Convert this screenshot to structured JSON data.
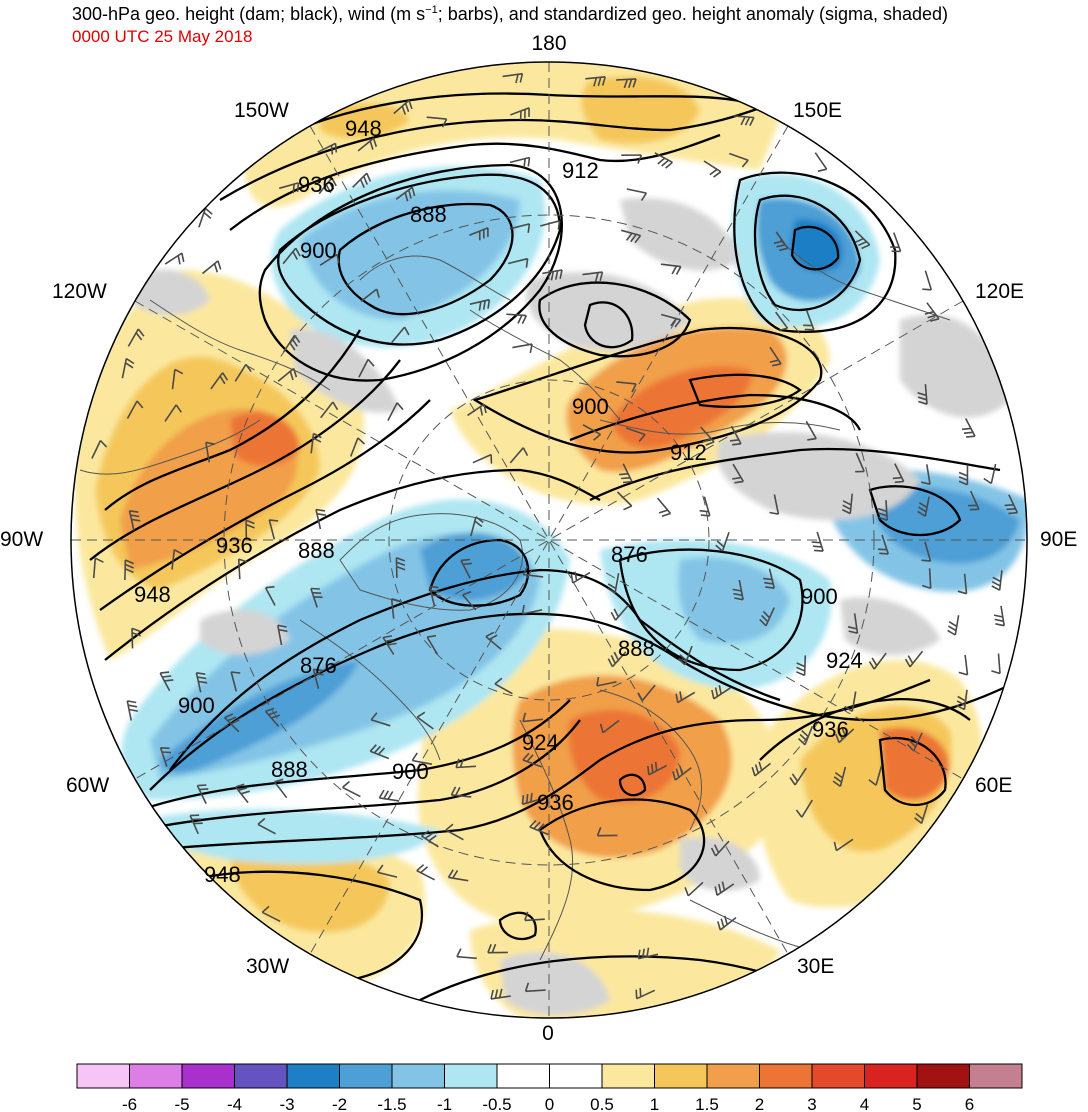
{
  "header": {
    "title_pre": "300-hPa geo. height (dam; black), wind (m s",
    "title_exp": "−1",
    "title_post": "; barbs), and standardized geo. height anomaly (sigma, shaded)",
    "valid_time": "0000 UTC 25 May 2018"
  },
  "map": {
    "projection": "north-polar-stereographic",
    "longitude_labels": [
      "180",
      "150E",
      "120E",
      "90E",
      "60E",
      "30E",
      "0",
      "30W",
      "60W",
      "90W",
      "120W",
      "150W"
    ],
    "height_contour_labels": [
      "948",
      "936",
      "912",
      "888",
      "900",
      "900",
      "912",
      "936",
      "888",
      "948",
      "876",
      "876",
      "900",
      "888",
      "924",
      "936",
      "900",
      "888",
      "924",
      "936",
      "948",
      "900"
    ],
    "colors": {
      "contour": "#000000",
      "barb": "#4a4a4a",
      "graticule": "#555555",
      "coast": "#555555"
    }
  },
  "colorbar": {
    "labels": [
      "-6",
      "-5",
      "-4",
      "-3",
      "-2",
      "-1.5",
      "-1",
      "-0.5",
      "0",
      "0.5",
      "1",
      "1.5",
      "2",
      "3",
      "4",
      "5",
      "6"
    ],
    "colors": [
      "#f7c4f7",
      "#dd7de6",
      "#a830cc",
      "#6554c0",
      "#1e7fc6",
      "#4d9fd6",
      "#83c4e6",
      "#aee6f2",
      "#ffffff",
      "#ffffff",
      "#fbe89e",
      "#f5c75a",
      "#f19f4a",
      "#ec7434",
      "#e34a2b",
      "#d92320",
      "#a11213",
      "#c48090"
    ]
  }
}
